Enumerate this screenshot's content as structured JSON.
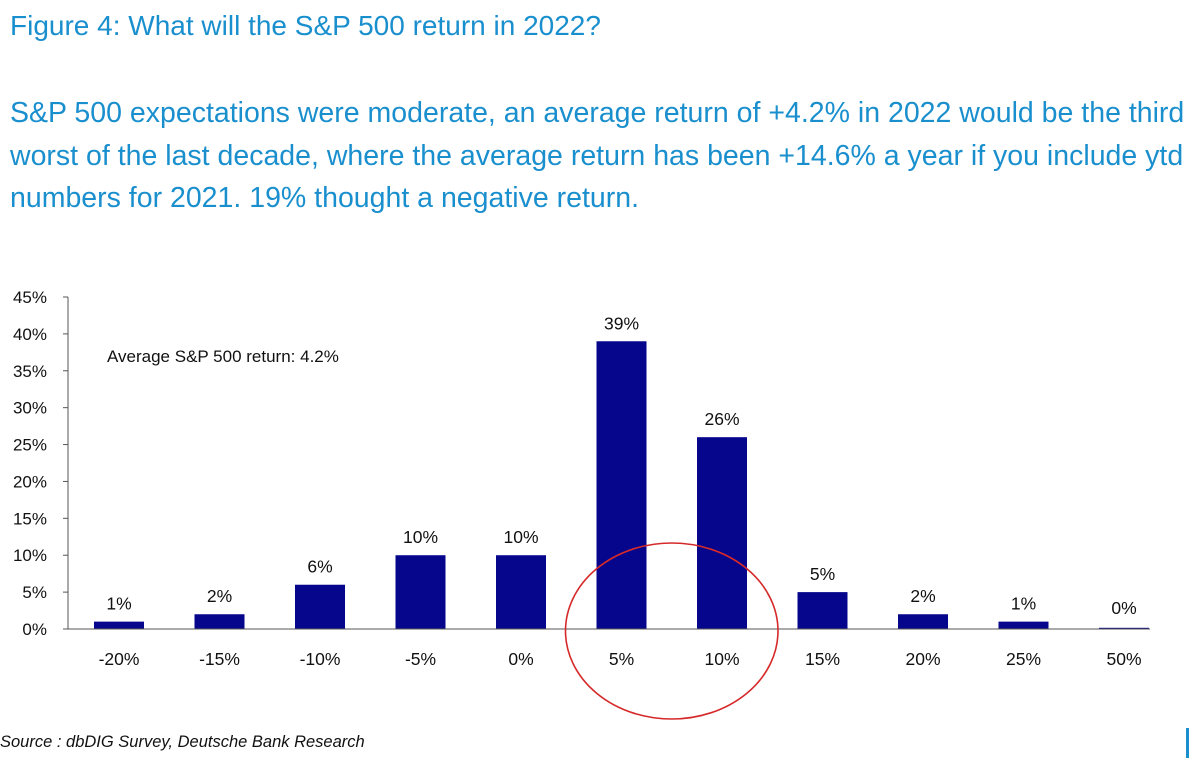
{
  "figure_title": "Figure 4: What will the S&P 500 return in 2022?",
  "subtitle": "S&P 500 expectations were moderate, an average return of +4.2% in 2022 would be the third worst of the last decade, where the average return has been +14.6% a year if you include ytd numbers for 2021. 19% thought a negative return.",
  "source": "Source : dbDIG Survey, Deutsche Bank Research",
  "chart_data": {
    "type": "bar",
    "categories": [
      "-20%",
      "-15%",
      "-10%",
      "-5%",
      "0%",
      "5%",
      "10%",
      "15%",
      "20%",
      "25%",
      "50%"
    ],
    "values": [
      1,
      2,
      6,
      10,
      10,
      39,
      26,
      5,
      2,
      1,
      0
    ],
    "data_labels": [
      "1%",
      "2%",
      "6%",
      "10%",
      "10%",
      "39%",
      "26%",
      "5%",
      "2%",
      "1%",
      "0%"
    ],
    "y_ticks": [
      "0%",
      "5%",
      "10%",
      "15%",
      "20%",
      "25%",
      "30%",
      "35%",
      "40%",
      "45%"
    ],
    "ylim": [
      0,
      45
    ],
    "annotation": "Average S&P 500 return: 4.2%",
    "highlight": {
      "categories": [
        "5%",
        "10%"
      ],
      "shape": "ellipse",
      "color": "#d62a2a"
    },
    "bar_color": "#06068c",
    "grid": false,
    "legend": "none"
  }
}
